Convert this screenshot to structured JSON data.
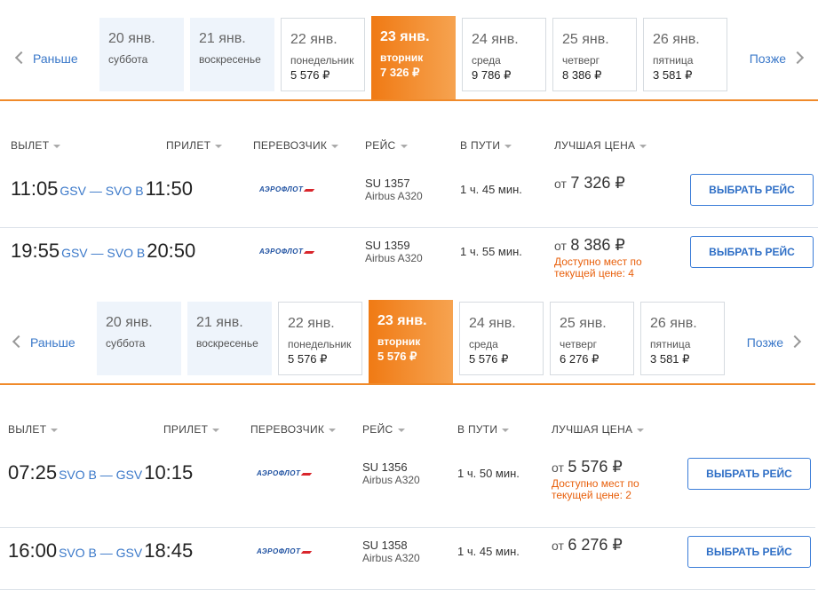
{
  "panels": [
    {
      "nav": {
        "prev": "Раньше",
        "next": "Позже"
      },
      "dates": [
        {
          "date": "20 янв.",
          "day": "суббота"
        },
        {
          "date": "21 янв.",
          "day": "воскресенье"
        },
        {
          "date": "22 янв.",
          "day": "понедельник",
          "price": "5 576 ₽"
        },
        {
          "date": "23 янв.",
          "day": "вторник",
          "price": "7 326 ₽",
          "active": true
        },
        {
          "date": "24 янв.",
          "day": "среда",
          "price": "9 786 ₽"
        },
        {
          "date": "25 янв.",
          "day": "четверг",
          "price": "8 386 ₽"
        },
        {
          "date": "26 янв.",
          "day": "пятница",
          "price": "3 581 ₽"
        }
      ],
      "headers": [
        "ВЫЛЕТ",
        "ПРИЛЕТ",
        "ПЕРЕВОЗЧИК",
        "РЕЙС",
        "В ПУТИ",
        "ЛУЧШАЯ ЦЕНА"
      ],
      "flights": [
        {
          "dep_time": "11:05",
          "route": "GSV — SVO B",
          "arr_time": "11:50",
          "carrier": "АЭРОФЛОТ",
          "flight": "SU 1357",
          "aircraft": "Airbus A320",
          "duration": "1 ч. 45 мин.",
          "price_prefix": "от",
          "price": "7 326 ₽",
          "button": "ВЫБРАТЬ РЕЙС"
        },
        {
          "dep_time": "19:55",
          "route": "GSV — SVO B",
          "arr_time": "20:50",
          "carrier": "АЭРОФЛОТ",
          "flight": "SU 1359",
          "aircraft": "Airbus A320",
          "duration": "1 ч. 55 мин.",
          "price_prefix": "от",
          "price": "8 386 ₽",
          "note": "Доступно мест по текущей цене: 4",
          "button": "ВЫБРАТЬ РЕЙС"
        }
      ]
    },
    {
      "nav": {
        "prev": "Раньше",
        "next": "Позже"
      },
      "dates": [
        {
          "date": "20 янв.",
          "day": "суббота"
        },
        {
          "date": "21 янв.",
          "day": "воскресенье"
        },
        {
          "date": "22 янв.",
          "day": "понедельник",
          "price": "5 576 ₽"
        },
        {
          "date": "23 янв.",
          "day": "вторник",
          "price": "5 576 ₽",
          "active": true
        },
        {
          "date": "24 янв.",
          "day": "среда",
          "price": "5 576 ₽"
        },
        {
          "date": "25 янв.",
          "day": "четверг",
          "price": "6 276 ₽"
        },
        {
          "date": "26 янв.",
          "day": "пятница",
          "price": "3 581 ₽"
        }
      ],
      "headers": [
        "ВЫЛЕТ",
        "ПРИЛЕТ",
        "ПЕРЕВОЗЧИК",
        "РЕЙС",
        "В ПУТИ",
        "ЛУЧШАЯ ЦЕНА"
      ],
      "flights": [
        {
          "dep_time": "07:25",
          "route": "SVO B — GSV",
          "arr_time": "10:15",
          "carrier": "АЭРОФЛОТ",
          "flight": "SU 1356",
          "aircraft": "Airbus A320",
          "duration": "1 ч. 50 мин.",
          "price_prefix": "от",
          "price": "5 576 ₽",
          "note": "Доступно мест по текущей цене: 2",
          "button": "ВЫБРАТЬ РЕЙС"
        },
        {
          "dep_time": "16:00",
          "route": "SVO B — GSV",
          "arr_time": "18:45",
          "carrier": "АЭРОФЛОТ",
          "flight": "SU 1358",
          "aircraft": "Airbus A320",
          "duration": "1 ч. 45 мин.",
          "price_prefix": "от",
          "price": "6 276 ₽",
          "button": "ВЫБРАТЬ РЕЙС"
        }
      ]
    }
  ]
}
